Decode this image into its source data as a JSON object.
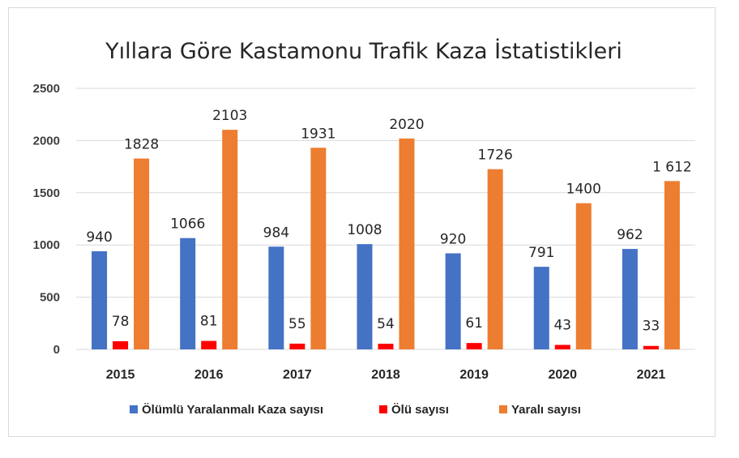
{
  "chart_data": {
    "type": "bar",
    "title": "Yıllara Göre Kastamonu Trafik Kaza İstatistikleri",
    "categories": [
      "2015",
      "2016",
      "2017",
      "2018",
      "2019",
      "2020",
      "2021"
    ],
    "series": [
      {
        "name": "Ölümlü Yaralanmalı Kaza sayısı",
        "color": "#4472c4",
        "values": [
          940,
          1066,
          984,
          1008,
          920,
          791,
          962
        ],
        "labels": [
          "940",
          "1066",
          "984",
          "1008",
          "920",
          "791",
          "962"
        ]
      },
      {
        "name": "Ölü sayısı",
        "color": "#ff0000",
        "values": [
          78,
          81,
          55,
          54,
          61,
          43,
          33
        ],
        "labels": [
          "78",
          "81",
          "55",
          "54",
          "61",
          "43",
          "33"
        ]
      },
      {
        "name": "Yaralı sayısı",
        "color": "#ed7d31",
        "values": [
          1828,
          2103,
          1931,
          2020,
          1726,
          1400,
          1612
        ],
        "labels": [
          "1828",
          "2103",
          "1931",
          "2020",
          "1726",
          "1400",
          "1 612"
        ]
      }
    ],
    "yticks": [
      "0",
      "500",
      "1000",
      "1500",
      "2000",
      "2500"
    ],
    "ylim": [
      0,
      2500
    ],
    "grid": true,
    "gridline_color": "#d9d9d9",
    "legend_position": "bottom"
  }
}
